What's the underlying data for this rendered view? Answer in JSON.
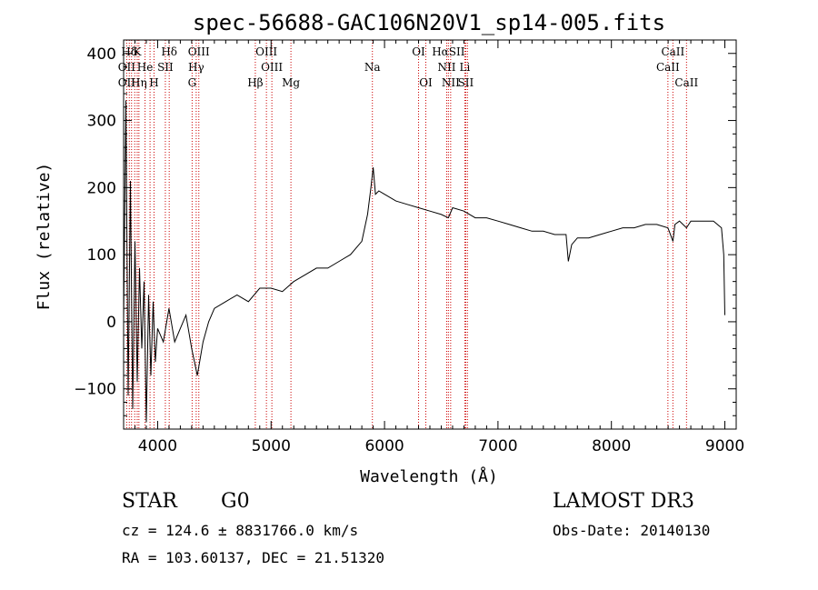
{
  "chart_data": {
    "type": "line",
    "title": "spec-56688-GAC106N20V1_sp14-005.fits",
    "xlabel": "Wavelength (Å)",
    "ylabel": "Flux (relative)",
    "xlim": [
      3700,
      9100
    ],
    "ylim": [
      -160,
      420
    ],
    "x_ticks": [
      4000,
      5000,
      6000,
      7000,
      8000,
      9000
    ],
    "y_ticks": [
      -100,
      0,
      100,
      200,
      300,
      400
    ],
    "series": [
      {
        "name": "flux",
        "x": [
          3700,
          3720,
          3740,
          3760,
          3780,
          3800,
          3820,
          3840,
          3860,
          3880,
          3900,
          3920,
          3940,
          3960,
          3980,
          4000,
          4050,
          4100,
          4150,
          4200,
          4250,
          4300,
          4350,
          4400,
          4450,
          4500,
          4600,
          4700,
          4800,
          4900,
          5000,
          5100,
          5200,
          5300,
          5400,
          5500,
          5600,
          5700,
          5800,
          5850,
          5880,
          5900,
          5920,
          5950,
          6000,
          6100,
          6200,
          6300,
          6400,
          6500,
          6563,
          6600,
          6700,
          6800,
          6900,
          7000,
          7100,
          7200,
          7300,
          7400,
          7500,
          7600,
          7620,
          7650,
          7700,
          7800,
          7900,
          8000,
          8100,
          8200,
          8300,
          8400,
          8498,
          8542,
          8560,
          8600,
          8662,
          8700,
          8800,
          8900,
          8970,
          8990,
          9000
        ],
        "y": [
          0,
          330,
          -110,
          210,
          -130,
          120,
          -90,
          80,
          -40,
          60,
          -150,
          40,
          -80,
          30,
          -60,
          -10,
          -30,
          20,
          -30,
          -10,
          10,
          -40,
          -80,
          -30,
          0,
          20,
          30,
          40,
          30,
          50,
          50,
          45,
          60,
          70,
          80,
          80,
          90,
          100,
          120,
          160,
          200,
          230,
          190,
          195,
          190,
          180,
          175,
          170,
          165,
          160,
          155,
          170,
          165,
          155,
          155,
          150,
          145,
          140,
          135,
          135,
          130,
          130,
          90,
          115,
          125,
          125,
          130,
          135,
          140,
          140,
          145,
          145,
          140,
          120,
          145,
          150,
          140,
          150,
          150,
          150,
          140,
          100,
          10
        ]
      }
    ],
    "spectral_lines": [
      {
        "label": "Hδ",
        "wavelength": 3750,
        "row": 0
      },
      {
        "label": "K",
        "wavelength": 3820,
        "row": 0
      },
      {
        "label": "Hδ",
        "wavelength": 4102,
        "row": 0
      },
      {
        "label": "OIII",
        "wavelength": 4363,
        "row": 0
      },
      {
        "label": "OIII",
        "wavelength": 4959,
        "row": 0
      },
      {
        "label": "OI",
        "wavelength": 6300,
        "row": 0
      },
      {
        "label": "HαSII",
        "wavelength": 6563,
        "row": 0
      },
      {
        "label": "CaII",
        "wavelength": 8542,
        "row": 0
      },
      {
        "label": "OII",
        "wavelength": 3727,
        "row": 1
      },
      {
        "label": "He",
        "wavelength": 3889,
        "row": 1
      },
      {
        "label": "SII",
        "wavelength": 4068,
        "row": 1
      },
      {
        "label": "Hγ",
        "wavelength": 4340,
        "row": 1
      },
      {
        "label": "OIII",
        "wavelength": 5007,
        "row": 1
      },
      {
        "label": "Na",
        "wavelength": 5893,
        "row": 1
      },
      {
        "label": "NII",
        "wavelength": 6548,
        "row": 1
      },
      {
        "label": "Li",
        "wavelength": 6708,
        "row": 1
      },
      {
        "label": "CaII",
        "wavelength": 8498,
        "row": 1
      },
      {
        "label": "OII",
        "wavelength": 3727,
        "row": 2
      },
      {
        "label": "Hη",
        "wavelength": 3835,
        "row": 2
      },
      {
        "label": "H",
        "wavelength": 3968,
        "row": 2
      },
      {
        "label": "G",
        "wavelength": 4304,
        "row": 2
      },
      {
        "label": "Hβ",
        "wavelength": 4861,
        "row": 2
      },
      {
        "label": "Mg",
        "wavelength": 5175,
        "row": 2
      },
      {
        "label": "OI",
        "wavelength": 6364,
        "row": 2
      },
      {
        "label": "NII",
        "wavelength": 6583,
        "row": 2
      },
      {
        "label": "SII",
        "wavelength": 6716,
        "row": 2
      },
      {
        "label": "CaII",
        "wavelength": 8662,
        "row": 2
      }
    ],
    "line_wavelengths": [
      3727,
      3750,
      3770,
      3798,
      3820,
      3835,
      3889,
      3933,
      3968,
      4068,
      4102,
      4304,
      4340,
      4363,
      4861,
      4959,
      5007,
      5175,
      5893,
      6300,
      6364,
      6548,
      6563,
      6583,
      6708,
      6716,
      6731,
      8498,
      8542,
      8662
    ],
    "line_color": "#cc0000"
  },
  "info": {
    "object_type": "STAR",
    "subclass": "G0",
    "survey": "LAMOST DR3",
    "redshift": "cz = 124.6 ± 8831766.0 km/s",
    "obs_date": "Obs-Date: 20140130",
    "coords": "RA = 103.60137, DEC =  21.51320"
  }
}
